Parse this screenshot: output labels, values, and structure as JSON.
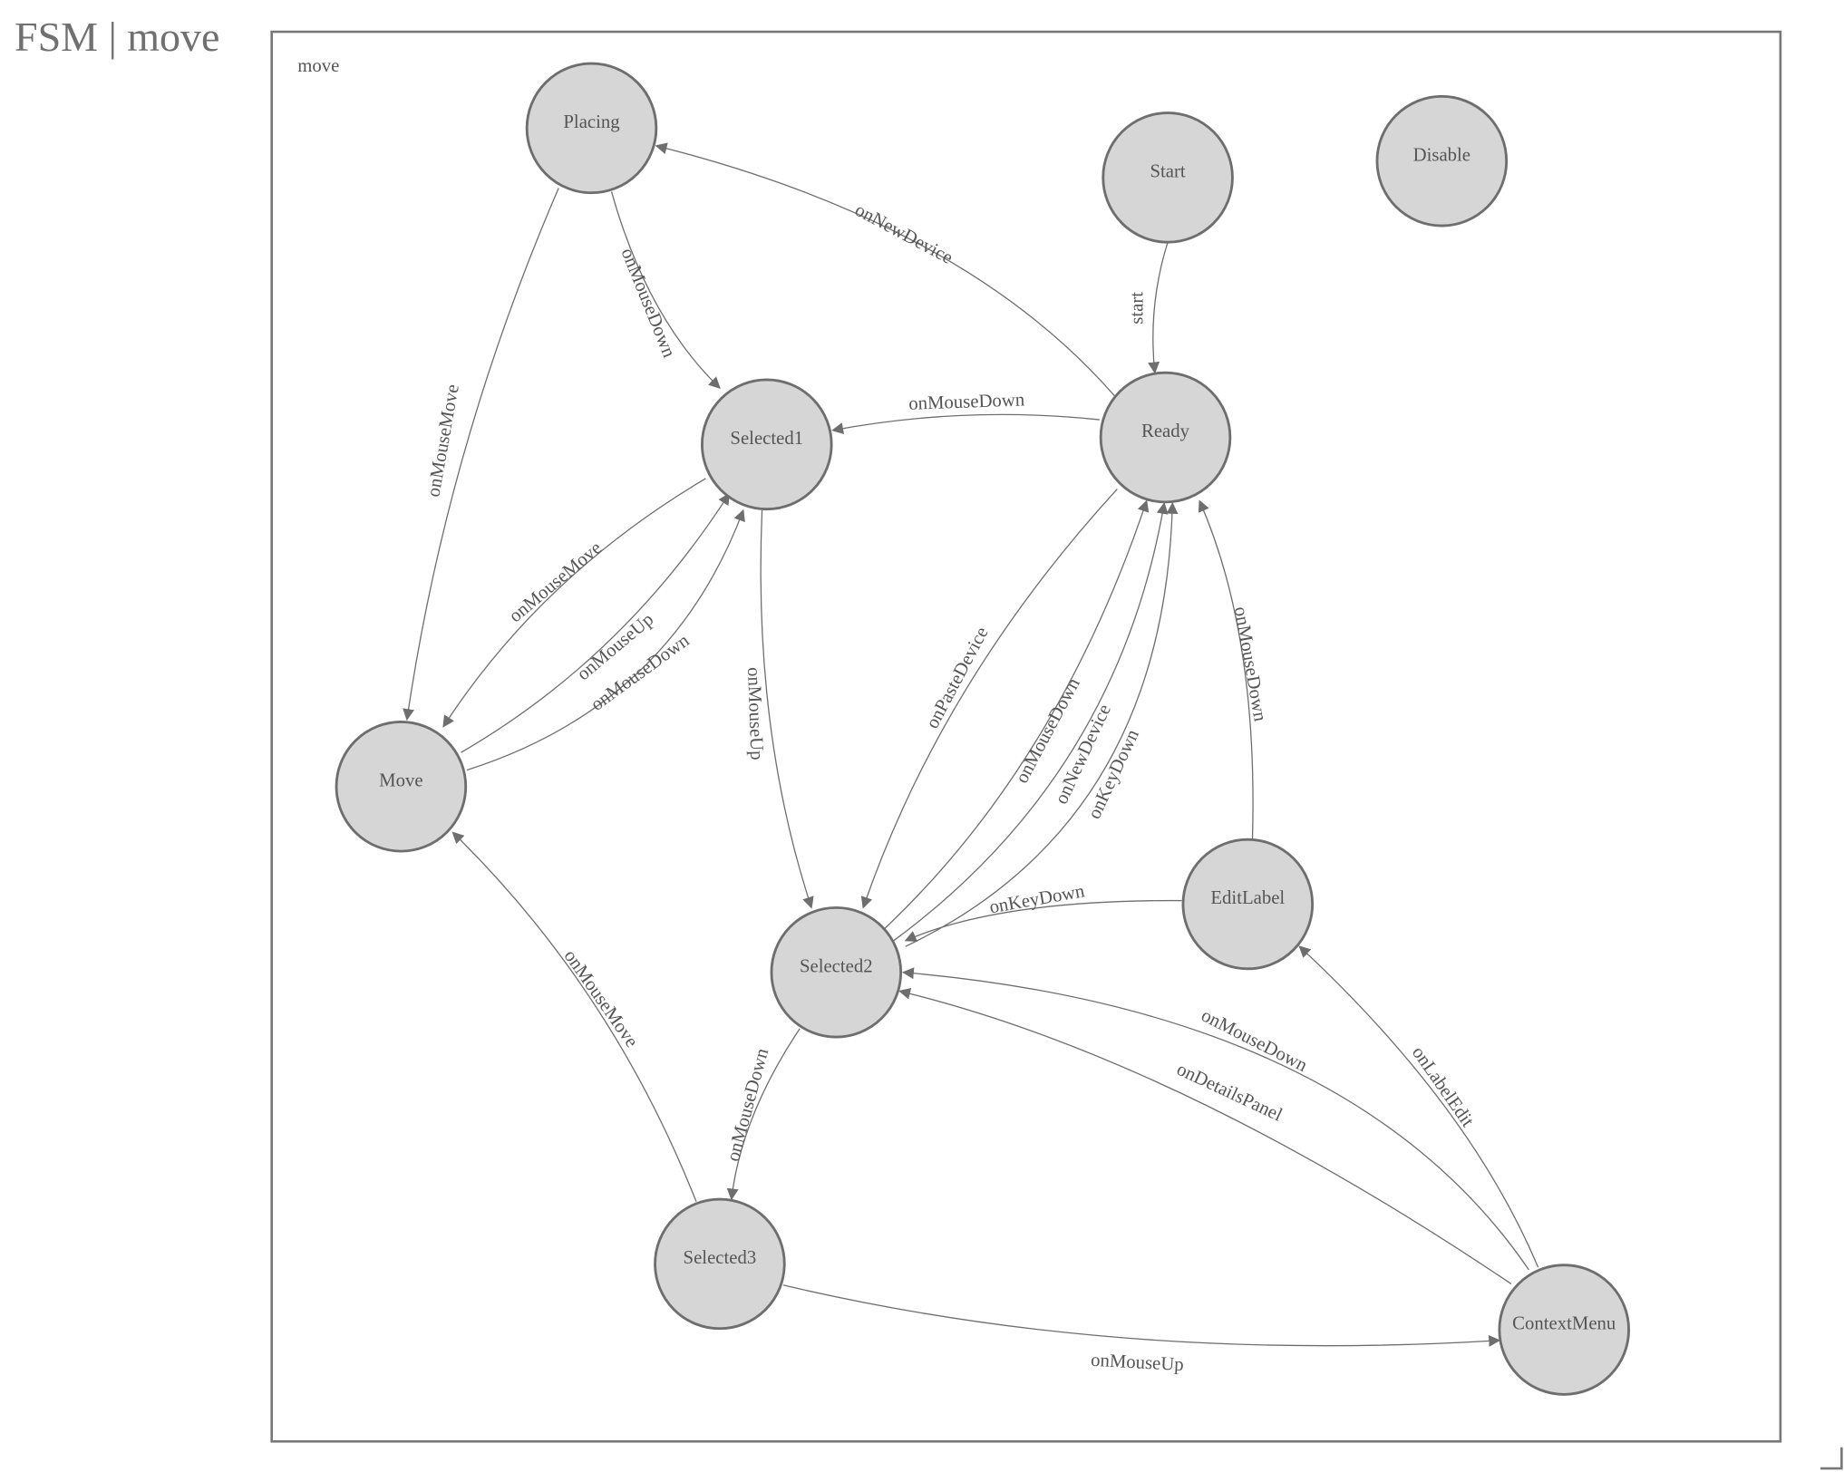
{
  "header": {
    "title": "FSM | move"
  },
  "diagram": {
    "group_label": "move",
    "nodes": [
      {
        "id": "Placing",
        "label": "Placing"
      },
      {
        "id": "Start",
        "label": "Start"
      },
      {
        "id": "Disable",
        "label": "Disable"
      },
      {
        "id": "Selected1",
        "label": "Selected1"
      },
      {
        "id": "Ready",
        "label": "Ready"
      },
      {
        "id": "Move",
        "label": "Move"
      },
      {
        "id": "Selected2",
        "label": "Selected2"
      },
      {
        "id": "EditLabel",
        "label": "EditLabel"
      },
      {
        "id": "Selected3",
        "label": "Selected3"
      },
      {
        "id": "ContextMenu",
        "label": "ContextMenu"
      }
    ],
    "edges": [
      {
        "from": "Start",
        "to": "Ready",
        "label": "start"
      },
      {
        "from": "Ready",
        "to": "Placing",
        "label": "onNewDevice"
      },
      {
        "from": "Ready",
        "to": "Selected1",
        "label": "onMouseDown"
      },
      {
        "from": "Placing",
        "to": "Move",
        "label": "onMouseMove"
      },
      {
        "from": "Placing",
        "to": "Selected1",
        "label": "onMouseDown"
      },
      {
        "from": "Selected1",
        "to": "Move",
        "label": "onMouseMove"
      },
      {
        "from": "Move",
        "to": "Selected1",
        "label": "onMouseUp"
      },
      {
        "from": "Move",
        "to": "Selected1",
        "label": "onMouseDown"
      },
      {
        "from": "Selected1",
        "to": "Selected2",
        "label": "onMouseUp"
      },
      {
        "from": "Ready",
        "to": "Selected2",
        "label": "onPasteDevice"
      },
      {
        "from": "Selected2",
        "to": "Ready",
        "label": "onMouseDown"
      },
      {
        "from": "Selected2",
        "to": "Ready",
        "label": "onNewDevice"
      },
      {
        "from": "Selected2",
        "to": "Ready",
        "label": "onKeyDown"
      },
      {
        "from": "EditLabel",
        "to": "Ready",
        "label": "onMouseDown"
      },
      {
        "from": "EditLabel",
        "to": "Selected2",
        "label": "onKeyDown"
      },
      {
        "from": "ContextMenu",
        "to": "Selected2",
        "label": "onMouseDown"
      },
      {
        "from": "ContextMenu",
        "to": "Selected2",
        "label": "onDetailsPanel"
      },
      {
        "from": "ContextMenu",
        "to": "EditLabel",
        "label": "onLabelEdit"
      },
      {
        "from": "Selected2",
        "to": "Selected3",
        "label": "onMouseDown"
      },
      {
        "from": "Selected3",
        "to": "Move",
        "label": "onMouseMove"
      },
      {
        "from": "Selected3",
        "to": "ContextMenu",
        "label": "onMouseUp"
      }
    ]
  }
}
